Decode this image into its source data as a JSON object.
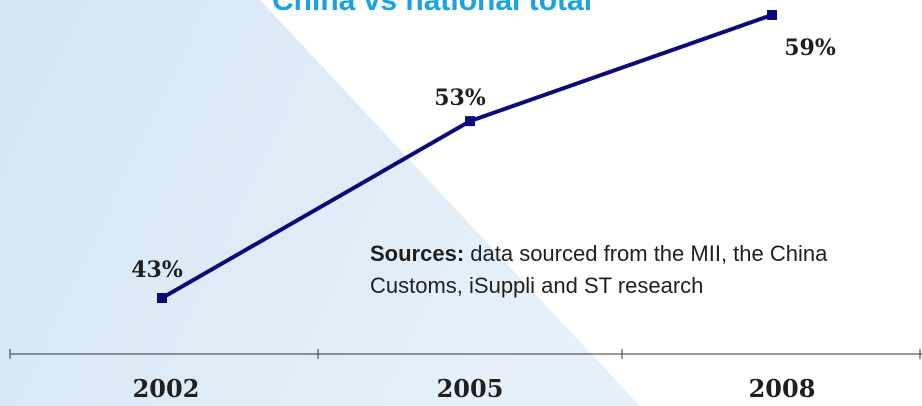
{
  "chart_data": {
    "type": "line",
    "title": "China vs national total",
    "categories": [
      "2002",
      "2005",
      "2008"
    ],
    "series": [
      {
        "values": [
          43,
          53,
          59
        ]
      }
    ],
    "data_labels": [
      "43%",
      "53%",
      "59%"
    ],
    "ylim": [
      40,
      60
    ],
    "grid": false,
    "line_color": "#0a0a7a"
  },
  "sources": {
    "label": "Sources:",
    "text": " data sourced from the MII, the China Customs, iSuppli and ST research"
  },
  "colors": {
    "title": "#1aa3e0",
    "background_wash": "#dcebf6"
  }
}
